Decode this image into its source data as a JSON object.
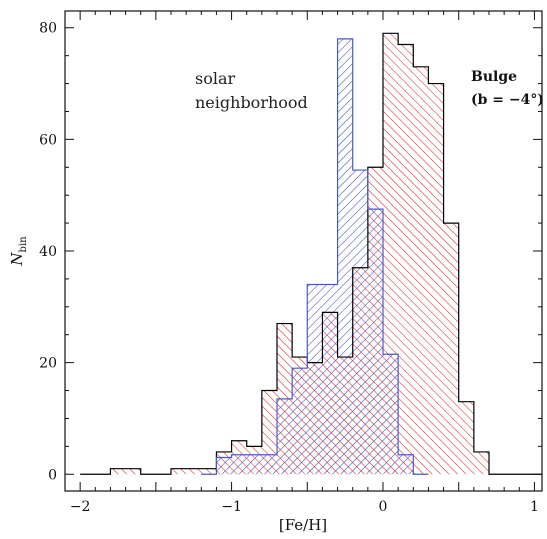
{
  "chart_data": {
    "type": "bar",
    "title": "",
    "xlabel": "[Fe/H]",
    "ylabel_main": "N",
    "ylabel_sub": "bin",
    "xlim": [
      -2.1,
      1.05
    ],
    "ylim": [
      -3,
      83
    ],
    "x_ticks": [
      -2,
      -1,
      0,
      1
    ],
    "y_ticks": [
      0,
      20,
      40,
      60,
      80
    ],
    "bin_width": 0.1,
    "series": [
      {
        "name": "Bulge",
        "color": "#d62728",
        "edge": "#000000",
        "bin_starts": [
          -2.0,
          -1.9,
          -1.8,
          -1.7,
          -1.6,
          -1.5,
          -1.4,
          -1.3,
          -1.2,
          -1.1,
          -1.0,
          -0.9,
          -0.8,
          -0.7,
          -0.6,
          -0.5,
          -0.4,
          -0.3,
          -0.2,
          -0.1,
          0.0,
          0.1,
          0.2,
          0.3,
          0.4,
          0.5,
          0.6,
          0.7,
          0.8,
          0.9,
          1.0
        ],
        "values": [
          0,
          0,
          1,
          1,
          0,
          0,
          1,
          1,
          1,
          4,
          6,
          5,
          15,
          27,
          21,
          20,
          29,
          21,
          37,
          55,
          79,
          77,
          73,
          70,
          45,
          13,
          4,
          0,
          0,
          0,
          0
        ]
      },
      {
        "name": "solar neighborhood",
        "color": "#3b4cc0",
        "edge": "#4a5acd",
        "bin_starts": [
          -1.2,
          -1.1,
          -1.0,
          -0.9,
          -0.8,
          -0.7,
          -0.6,
          -0.5,
          -0.4,
          -0.3,
          -0.2,
          -0.1,
          0.0,
          0.1,
          0.2
        ],
        "values": [
          0,
          3,
          3.5,
          3.5,
          3.5,
          13.5,
          19,
          34,
          34,
          78,
          54.5,
          47.5,
          21.5,
          3.5,
          0
        ]
      }
    ],
    "annotations": {
      "solar_line1": "solar",
      "solar_line2": "neighborhood",
      "bulge_line1": "Bulge",
      "bulge_line2": "(b = −4°)"
    }
  },
  "colors": {
    "bulge_hatch": "#d62728",
    "solar_hatch": "#3b4cc0",
    "axis": "#111111"
  }
}
